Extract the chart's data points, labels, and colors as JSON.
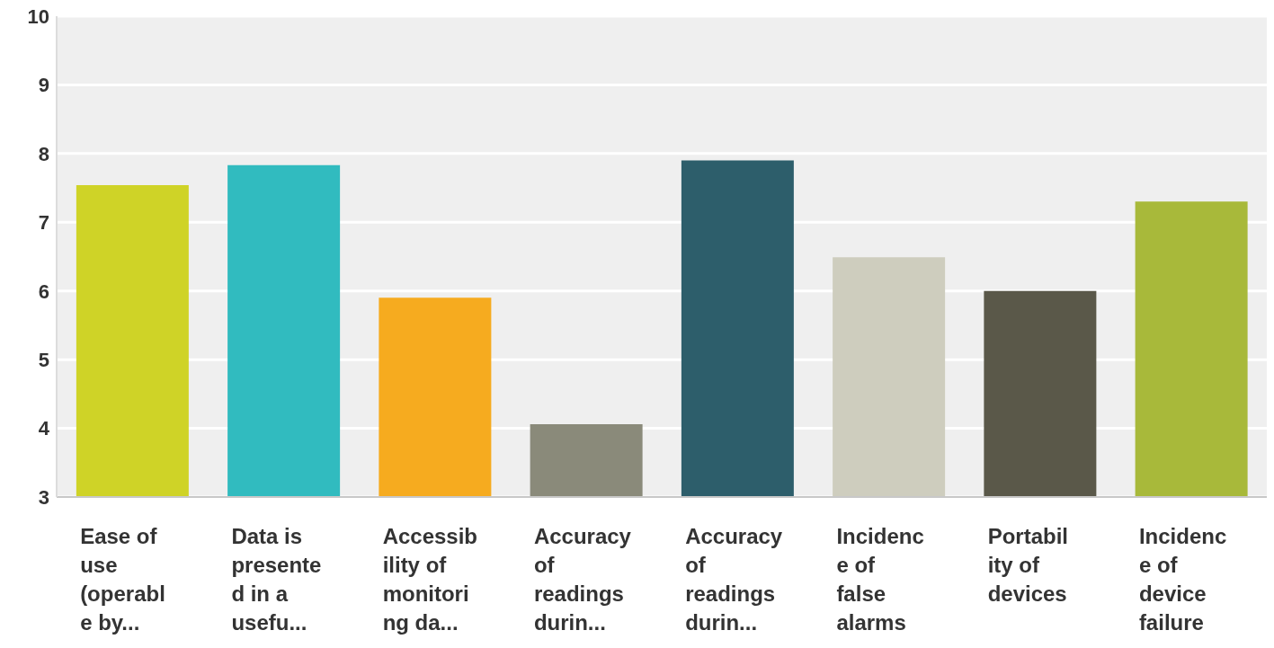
{
  "chart_data": {
    "type": "bar",
    "categories": [
      "Ease of use (operable by...",
      "Data is presented in a usefu...",
      "Accessibility of monitoring da...",
      "Accuracy of readings durin...",
      "Accuracy of readings durin...",
      "Incidence of false alarms",
      "Portability of devices",
      "Incidence of device failure"
    ],
    "values": [
      7.54,
      7.83,
      5.9,
      4.06,
      7.9,
      6.49,
      6.0,
      7.3
    ],
    "colors": [
      "#cfd327",
      "#31bbbf",
      "#f6ab1f",
      "#8a8a7a",
      "#2d5e6b",
      "#cecdbe",
      "#5a5849",
      "#a8b93a"
    ],
    "ylim": [
      3,
      10
    ],
    "yticks": [
      3,
      4,
      5,
      6,
      7,
      8,
      9,
      10
    ],
    "grid": "y"
  }
}
